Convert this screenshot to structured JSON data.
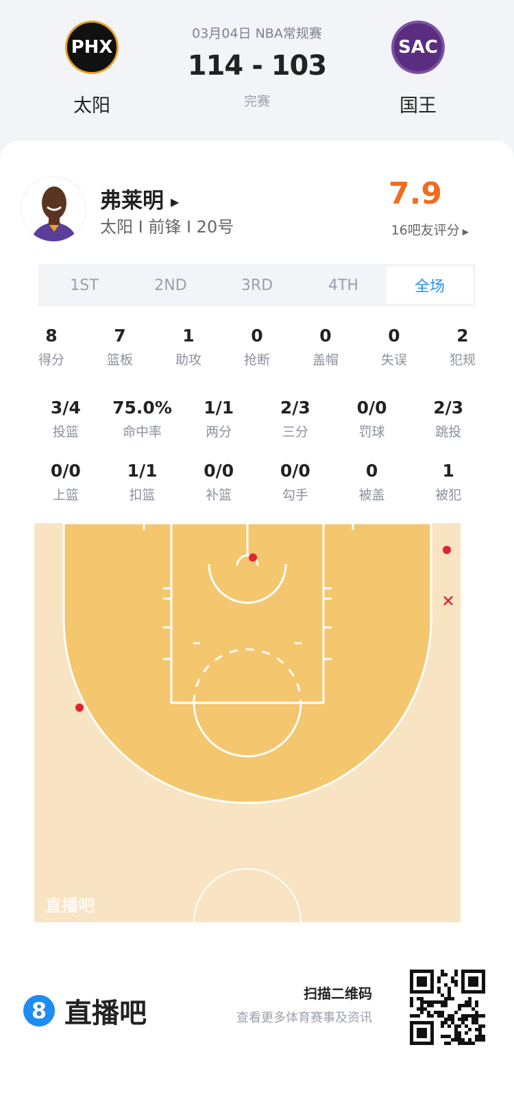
{
  "match": {
    "date_league": "03月04日 NBA常规赛",
    "score": "114 - 103",
    "status": "完赛",
    "home": {
      "name": "太阳",
      "logo_text": "PHX",
      "color": "#1d1160"
    },
    "away": {
      "name": "国王",
      "logo_text": "SAC",
      "color": "#5a2d81"
    }
  },
  "player": {
    "name": "弗莱明",
    "info": "太阳 I 前锋 I 20号",
    "rating": "7.9",
    "rating_sub": "16吧友评分",
    "rating_color": "#f26b22"
  },
  "tabs": [
    {
      "label": "1ST"
    },
    {
      "label": "2ND"
    },
    {
      "label": "3RD"
    },
    {
      "label": "4TH"
    },
    {
      "label": "全场",
      "active": true
    }
  ],
  "stats_row1": [
    {
      "v": "8",
      "l": "得分"
    },
    {
      "v": "7",
      "l": "篮板"
    },
    {
      "v": "1",
      "l": "助攻"
    },
    {
      "v": "0",
      "l": "抢断"
    },
    {
      "v": "0",
      "l": "盖帽"
    },
    {
      "v": "0",
      "l": "失误"
    },
    {
      "v": "2",
      "l": "犯规"
    }
  ],
  "stats_row2": [
    {
      "v": "3/4",
      "l": "投篮"
    },
    {
      "v": "75.0%",
      "l": "命中率"
    },
    {
      "v": "1/1",
      "l": "两分"
    },
    {
      "v": "2/3",
      "l": "三分"
    },
    {
      "v": "0/0",
      "l": "罚球"
    },
    {
      "v": "2/3",
      "l": "跳投"
    }
  ],
  "stats_row3": [
    {
      "v": "0/0",
      "l": "上篮"
    },
    {
      "v": "1/1",
      "l": "扣篮"
    },
    {
      "v": "0/0",
      "l": "补篮"
    },
    {
      "v": "0/0",
      "l": "勾手"
    },
    {
      "v": "0",
      "l": "被盖"
    },
    {
      "v": "1",
      "l": "被犯"
    }
  ],
  "shot_chart": {
    "watermark": "直播吧",
    "made_color": "#e0242f",
    "shots": [
      {
        "result": "made",
        "zone": "restricted area"
      },
      {
        "result": "made",
        "zone": "right corner three"
      },
      {
        "result": "missed",
        "zone": "right corner three"
      },
      {
        "result": "made",
        "zone": "left wing three"
      }
    ]
  },
  "footer": {
    "brand_icon": "8",
    "brand": "直播吧",
    "scan_title": "扫描二维码",
    "scan_sub": "查看更多体育赛事及资讯"
  }
}
